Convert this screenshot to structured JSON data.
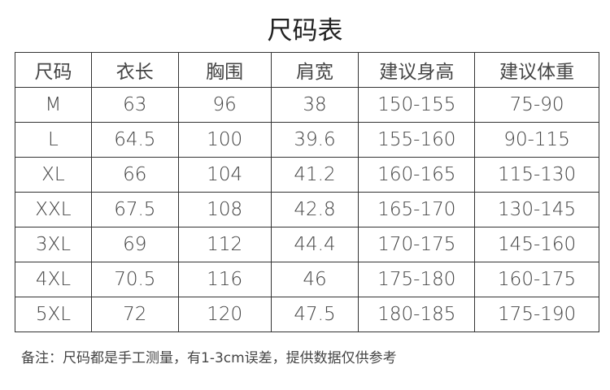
{
  "title": "尺码表",
  "table": {
    "headers": [
      "尺码",
      "衣长",
      "胸围",
      "肩宽",
      "建议身高",
      "建议体重"
    ],
    "rows": [
      [
        "M",
        "63",
        "96",
        "38",
        "150-155",
        "75-90"
      ],
      [
        "L",
        "64.5",
        "100",
        "39.6",
        "155-160",
        "90-115"
      ],
      [
        "XL",
        "66",
        "104",
        "41.2",
        "160-165",
        "115-130"
      ],
      [
        "XXL",
        "67.5",
        "108",
        "42.8",
        "165-170",
        "130-145"
      ],
      [
        "3XL",
        "69",
        "112",
        "44.4",
        "170-175",
        "145-160"
      ],
      [
        "4XL",
        "70.5",
        "116",
        "46",
        "175-180",
        "160-175"
      ],
      [
        "5XL",
        "72",
        "120",
        "47.5",
        "180-185",
        "175-190"
      ]
    ]
  },
  "note": "备注：尺码都是手工测量，有1-3cm误差，提供数据仅供参考"
}
